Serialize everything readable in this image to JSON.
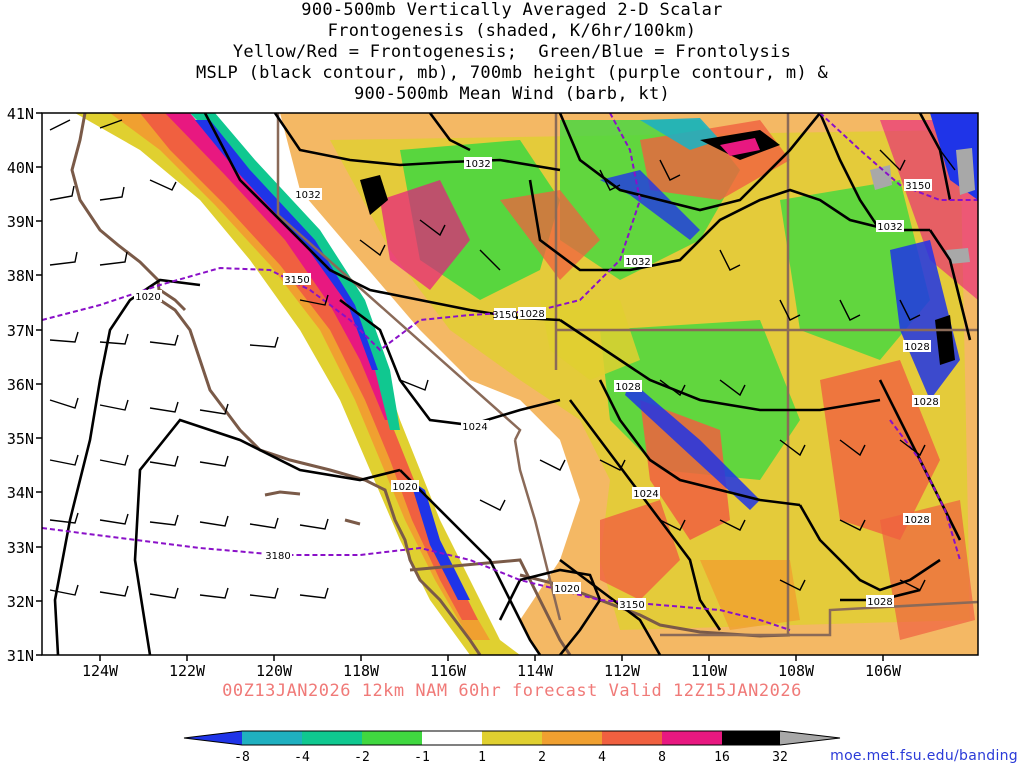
{
  "title_lines": [
    "900-500mb Vertically Averaged 2-D Scalar",
    "Frontogenesis (shaded, K/6hr/100km)",
    "Yellow/Red = Frontogenesis;  Green/Blue = Frontolysis",
    "MSLP (black contour, mb), 700mb height (purple contour, m) &",
    "900-500mb Mean Wind (barb, kt)"
  ],
  "valid_text": "00Z13JAN2026 12km NAM 60hr forecast Valid 12Z15JAN2026",
  "credit": "moe.met.fsu.edu/banding",
  "lat_labels": [
    "41N",
    "40N",
    "39N",
    "38N",
    "37N",
    "36N",
    "35N",
    "34N",
    "33N",
    "32N",
    "31N"
  ],
  "lon_labels": [
    "124W",
    "122W",
    "120W",
    "118W",
    "116W",
    "114W",
    "112W",
    "110W",
    "108W",
    "106W"
  ],
  "colorbar": {
    "labels": [
      "-8",
      "-4",
      "-2",
      "-1",
      "1",
      "2",
      "4",
      "8",
      "16",
      "32"
    ],
    "colors": [
      "#1f34e8",
      "#1fb0c0",
      "#10c890",
      "#40d840",
      "#ffffff",
      "#e0d030",
      "#f0a030",
      "#f06040",
      "#e81880",
      "#000000",
      "#a8a8a8"
    ]
  },
  "mslp_labels": [
    "1032",
    "1032",
    "1032",
    "1028",
    "1028",
    "1028",
    "1028",
    "1024",
    "1024",
    "1020",
    "1020",
    "1020",
    "1028",
    "1032",
    "1028"
  ],
  "height_labels": [
    "3150",
    "3180",
    "3150",
    "3150",
    "3150"
  ],
  "colors": {
    "mslp": "#000000",
    "height": "#8a10c8",
    "coast": "#7a5a48",
    "valid_text": "#f07a78",
    "credit": "#2a3ad8"
  }
}
